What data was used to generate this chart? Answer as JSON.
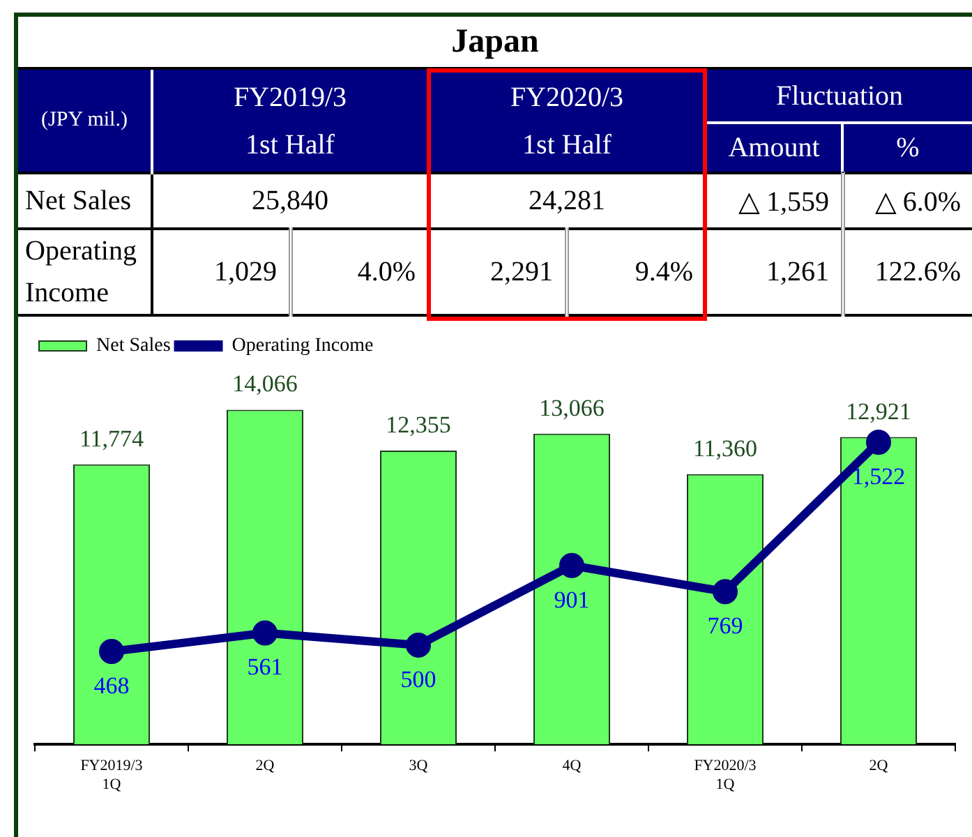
{
  "chart_data": [
    {
      "type": "other",
      "title": "Japan",
      "annotations": [
        "(JPY mil.)",
        "FY2019/3 1st Half",
        "FY2020/3 1st Half",
        "Fluctuation",
        "Amount",
        "%"
      ],
      "y_categories": [
        "Net Sales",
        "Operating Income"
      ],
      "cell_labels": [
        [
          "25,840",
          "24,281",
          "△ 1,559",
          "△ 6.0%"
        ],
        [
          "1,029",
          "4.0%",
          "2,291",
          "9.4%",
          "1,261",
          "122.6%"
        ]
      ]
    },
    {
      "type": "bar",
      "categories": [
        "FY2019/3 1Q",
        "2Q",
        "3Q",
        "4Q",
        "FY2020/3 1Q",
        "2Q"
      ],
      "series": [
        {
          "name": "Net Sales",
          "type": "bar",
          "color": "#66ff66",
          "values": [
            11774,
            14066,
            12355,
            13066,
            11360,
            12921
          ],
          "value_labels": [
            "11,774",
            "14,066",
            "12,355",
            "13,066",
            "11,360",
            "12,921"
          ]
        },
        {
          "name": "Operating Income",
          "type": "line",
          "axis": "y2",
          "color": "#000080",
          "values": [
            468,
            561,
            500,
            901,
            769,
            1522
          ],
          "value_labels": [
            "468",
            "561",
            "500",
            "901",
            "769",
            "1,522"
          ]
        }
      ],
      "tick_labels": "x",
      "legend": "top left",
      "marker": "circle",
      "line_style": "solid"
    }
  ]
}
